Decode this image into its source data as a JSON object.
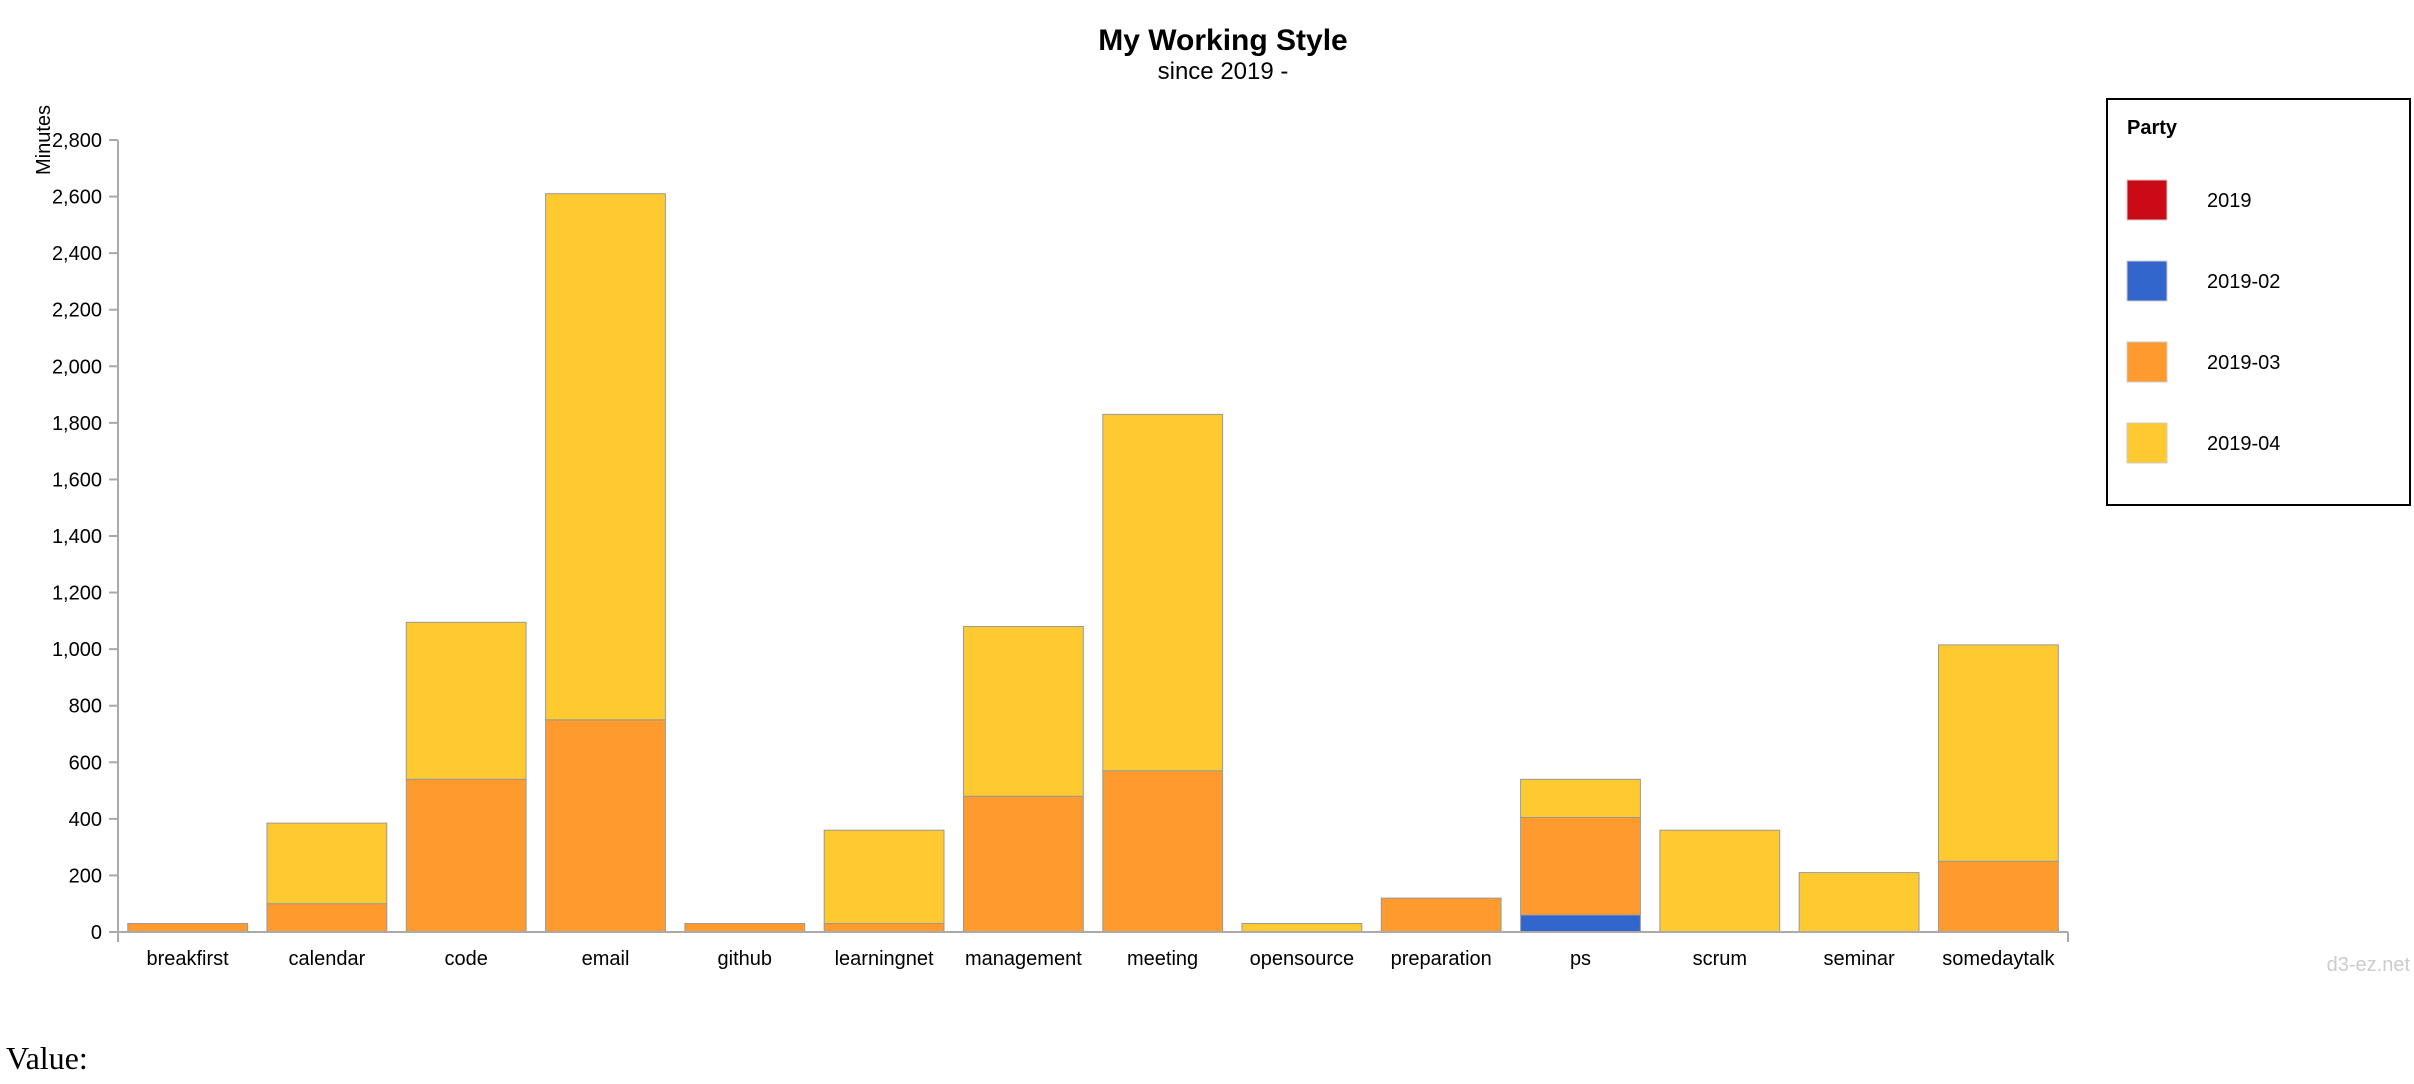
{
  "chart_data": {
    "type": "bar",
    "stacked": true,
    "title": "My Working Style",
    "subtitle": "since 2019 -",
    "ylabel": "Minutes",
    "ylim": [
      0,
      2800
    ],
    "yticks": [
      0,
      200,
      400,
      600,
      800,
      1000,
      1200,
      1400,
      1600,
      1800,
      2000,
      2200,
      2400,
      2600,
      2800
    ],
    "yticks_labels": [
      "0",
      "200",
      "400",
      "600",
      "800",
      "1,000",
      "1,200",
      "1,400",
      "1,600",
      "1,800",
      "2,000",
      "2,200",
      "2,400",
      "2,600",
      "2,800"
    ],
    "categories": [
      "breakfirst",
      "calendar",
      "code",
      "email",
      "github",
      "learningnet",
      "management",
      "meeting",
      "opensource",
      "preparation",
      "ps",
      "scrum",
      "seminar",
      "somedaytalk"
    ],
    "series": [
      {
        "name": "2019",
        "color": "#cc0a17",
        "values": [
          0,
          0,
          0,
          0,
          0,
          0,
          0,
          0,
          0,
          0,
          0,
          0,
          0,
          0
        ]
      },
      {
        "name": "2019-02",
        "color": "#3366cc",
        "values": [
          0,
          0,
          0,
          0,
          0,
          0,
          0,
          0,
          0,
          0,
          60,
          0,
          0,
          0
        ]
      },
      {
        "name": "2019-03",
        "color": "#ff9a2e",
        "values": [
          30,
          100,
          540,
          750,
          30,
          30,
          480,
          570,
          0,
          120,
          345,
          0,
          0,
          250
        ]
      },
      {
        "name": "2019-04",
        "color": "#ffca30",
        "values": [
          0,
          285,
          555,
          1860,
          0,
          330,
          600,
          1260,
          30,
          0,
          135,
          360,
          210,
          765
        ]
      }
    ],
    "grid": false
  },
  "legend": {
    "title": "Party",
    "items": [
      "2019",
      "2019-02",
      "2019-03",
      "2019-04"
    ]
  },
  "credit": "d3-ez.net",
  "value_label": "Value:"
}
